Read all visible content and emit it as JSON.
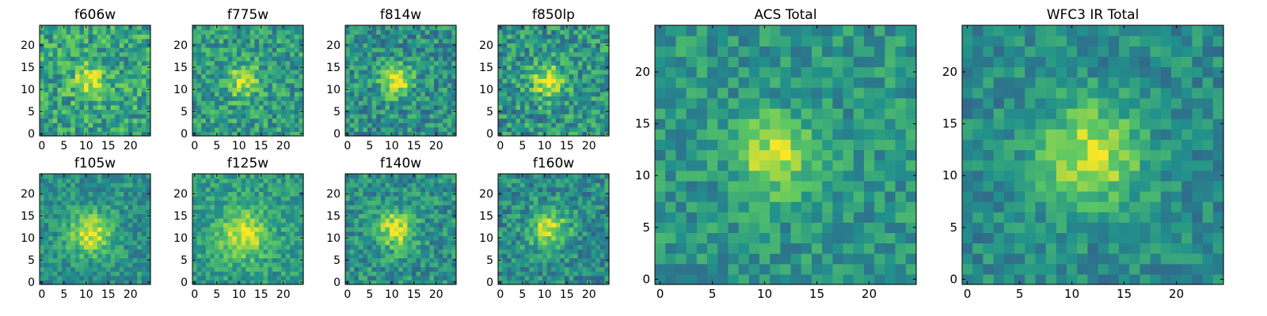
{
  "figure": {
    "colormap": "viridis",
    "colormap_stops": [
      "#440154",
      "#3b528b",
      "#21918c",
      "#5ec962",
      "#fde725"
    ]
  },
  "chart_data": [
    {
      "type": "heatmap",
      "title": "f606w",
      "grid_size": 25,
      "center": [
        11,
        12
      ],
      "sigma": 2.6,
      "peak": 0.35,
      "background": 0.58,
      "noise": 0.22,
      "seed": 11,
      "xticks": [
        0,
        5,
        10,
        15,
        20
      ],
      "yticks": [
        0,
        5,
        10,
        15,
        20
      ],
      "xlim": [
        -0.5,
        24.5
      ],
      "ylim": [
        -0.5,
        24.5
      ]
    },
    {
      "type": "heatmap",
      "title": "f775w",
      "grid_size": 25,
      "center": [
        11,
        12
      ],
      "sigma": 2.4,
      "peak": 0.4,
      "background": 0.55,
      "noise": 0.2,
      "seed": 23,
      "xticks": [
        0,
        5,
        10,
        15,
        20
      ],
      "yticks": [
        0,
        5,
        10,
        15,
        20
      ],
      "xlim": [
        -0.5,
        24.5
      ],
      "ylim": [
        -0.5,
        24.5
      ]
    },
    {
      "type": "heatmap",
      "title": "f814w",
      "grid_size": 25,
      "center": [
        11,
        12
      ],
      "sigma": 2.4,
      "peak": 0.5,
      "background": 0.5,
      "noise": 0.2,
      "seed": 37,
      "xticks": [
        0,
        5,
        10,
        15,
        20
      ],
      "yticks": [
        0,
        5,
        10,
        15,
        20
      ],
      "xlim": [
        -0.5,
        24.5
      ],
      "ylim": [
        -0.5,
        24.5
      ]
    },
    {
      "type": "heatmap",
      "title": "f850lp",
      "grid_size": 25,
      "center": [
        11,
        12
      ],
      "sigma": 2.6,
      "peak": 0.45,
      "background": 0.52,
      "noise": 0.22,
      "seed": 41,
      "xticks": [
        0,
        5,
        10,
        15,
        20
      ],
      "yticks": [
        0,
        5,
        10,
        15,
        20
      ],
      "xlim": [
        -0.5,
        24.5
      ],
      "ylim": [
        -0.5,
        24.5
      ]
    },
    {
      "type": "heatmap",
      "title": "f105w",
      "grid_size": 25,
      "center": [
        11,
        11
      ],
      "sigma": 3.4,
      "peak": 0.45,
      "background": 0.5,
      "noise": 0.15,
      "seed": 53,
      "xticks": [
        0,
        5,
        10,
        15,
        20
      ],
      "yticks": [
        0,
        5,
        10,
        15,
        20
      ],
      "xlim": [
        -0.5,
        24.5
      ],
      "ylim": [
        -0.5,
        24.5
      ]
    },
    {
      "type": "heatmap",
      "title": "f125w",
      "grid_size": 25,
      "center": [
        11,
        11
      ],
      "sigma": 3.8,
      "peak": 0.4,
      "background": 0.55,
      "noise": 0.15,
      "seed": 67,
      "xticks": [
        0,
        5,
        10,
        15,
        20
      ],
      "yticks": [
        0,
        5,
        10,
        15,
        20
      ],
      "xlim": [
        -0.5,
        24.5
      ],
      "ylim": [
        -0.5,
        24.5
      ]
    },
    {
      "type": "heatmap",
      "title": "f140w",
      "grid_size": 25,
      "center": [
        11,
        12
      ],
      "sigma": 3.0,
      "peak": 0.45,
      "background": 0.5,
      "noise": 0.18,
      "seed": 71,
      "xticks": [
        0,
        5,
        10,
        15,
        20
      ],
      "yticks": [
        0,
        5,
        10,
        15,
        20
      ],
      "xlim": [
        -0.5,
        24.5
      ],
      "ylim": [
        -0.5,
        24.5
      ]
    },
    {
      "type": "heatmap",
      "title": "f160w",
      "grid_size": 25,
      "center": [
        11,
        12
      ],
      "sigma": 3.0,
      "peak": 0.45,
      "background": 0.48,
      "noise": 0.18,
      "seed": 83,
      "xticks": [
        0,
        5,
        10,
        15,
        20
      ],
      "yticks": [
        0,
        5,
        10,
        15,
        20
      ],
      "xlim": [
        -0.5,
        24.5
      ],
      "ylim": [
        -0.5,
        24.5
      ]
    },
    {
      "type": "heatmap",
      "title": "ACS Total",
      "grid_size": 25,
      "center": [
        11,
        12
      ],
      "sigma": 2.6,
      "peak": 0.4,
      "background": 0.52,
      "noise": 0.15,
      "seed": 97,
      "xticks": [
        0,
        5,
        10,
        15,
        20
      ],
      "yticks": [
        0,
        5,
        10,
        15,
        20
      ],
      "xlim": [
        -0.5,
        24.5
      ],
      "ylim": [
        -0.5,
        24.5
      ]
    },
    {
      "type": "heatmap",
      "title": "WFC3 IR Total",
      "grid_size": 25,
      "center": [
        12,
        12
      ],
      "sigma": 3.4,
      "peak": 0.45,
      "background": 0.48,
      "noise": 0.14,
      "seed": 101,
      "xticks": [
        0,
        5,
        10,
        15,
        20
      ],
      "yticks": [
        0,
        5,
        10,
        15,
        20
      ],
      "xlim": [
        -0.5,
        24.5
      ],
      "ylim": [
        -0.5,
        24.5
      ]
    }
  ]
}
